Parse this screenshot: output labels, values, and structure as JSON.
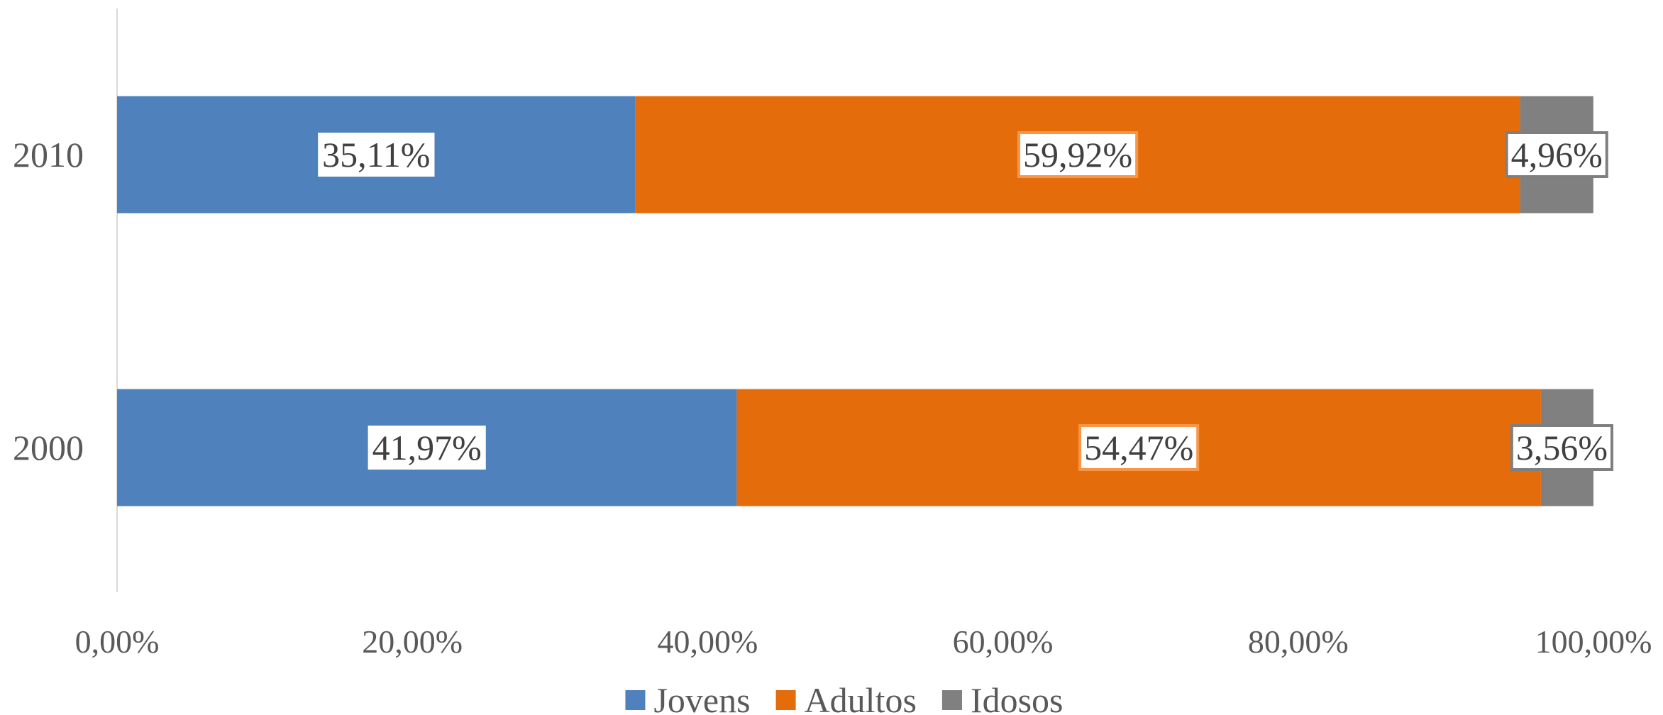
{
  "chart_data": {
    "type": "bar",
    "orientation": "horizontal",
    "stacked": "percent",
    "categories": [
      "2010",
      "2000"
    ],
    "series": [
      {
        "name": "Jovens",
        "color": "#4F81BD",
        "values": [
          35.11,
          41.97
        ],
        "labels": [
          "35,11%",
          "41,97%"
        ]
      },
      {
        "name": "Adultos",
        "color": "#E46C0A",
        "values": [
          59.92,
          54.47
        ],
        "labels": [
          "59,92%",
          "54,47%"
        ]
      },
      {
        "name": "Idosos",
        "color": "#808080",
        "values": [
          4.96,
          3.56
        ],
        "labels": [
          "4,96%",
          "3,56%"
        ]
      }
    ],
    "xlim": [
      0,
      100
    ],
    "xticks": [
      0,
      20,
      40,
      60,
      80,
      100
    ],
    "xtick_labels": [
      "0,00%",
      "20,00%",
      "40,00%",
      "60,00%",
      "80,00%",
      "100,00%"
    ],
    "title": "",
    "xlabel": "",
    "ylabel": "",
    "grid": false,
    "legend_position": "bottom"
  }
}
